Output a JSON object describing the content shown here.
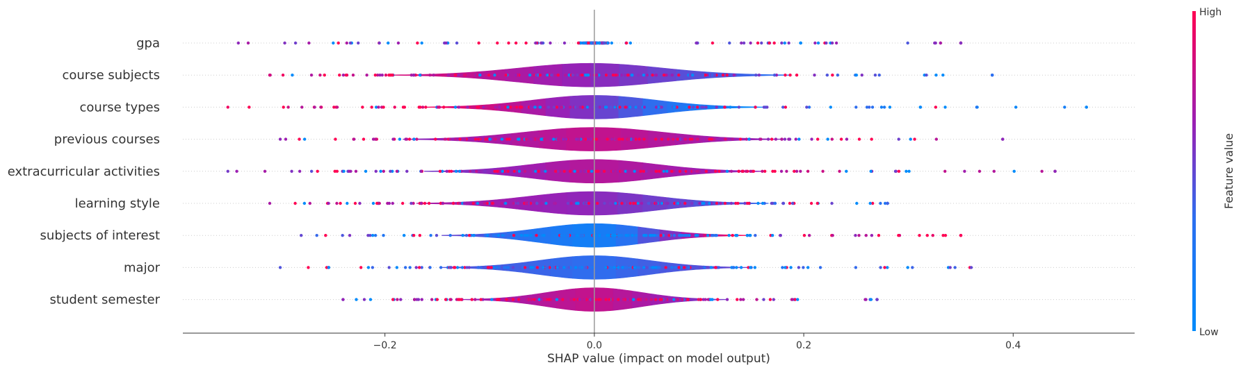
{
  "chart_data": {
    "type": "violin",
    "xlabel": "SHAP value (impact on model output)",
    "xlim": [
      -0.393,
      0.516
    ],
    "xticks": [
      -0.2,
      0.0,
      0.2,
      0.4
    ],
    "xtick_labels": [
      "−0.2",
      "0.0",
      "0.2",
      "0.4"
    ],
    "grid": false,
    "zero_line": 0,
    "colorbar": {
      "label": "Feature value",
      "high_label": "High",
      "low_label": "Low",
      "high_color": "#ff0052",
      "low_color": "#008bfb"
    },
    "colors": {
      "high": "#ff0052",
      "low": "#008bfb",
      "zero_line": "#999999"
    },
    "features": [
      {
        "name": "gpa",
        "range": [
          -0.34,
          0.35
        ],
        "spread": 0.004,
        "density": 0.3,
        "skew": 0.0,
        "mix": [
          0.62,
          0.5,
          0.58
        ]
      },
      {
        "name": "course subjects",
        "range": [
          -0.31,
          0.38
        ],
        "spread": 0.068,
        "density": 1.0,
        "skew": -0.05,
        "mix": [
          0.85,
          0.62,
          0.35
        ]
      },
      {
        "name": "course types",
        "range": [
          -0.35,
          0.47
        ],
        "spread": 0.058,
        "density": 1.0,
        "skew": 0.0,
        "mix": [
          0.95,
          0.55,
          0.05
        ]
      },
      {
        "name": "previous courses",
        "range": [
          -0.3,
          0.39
        ],
        "spread": 0.065,
        "density": 1.0,
        "skew": -0.01,
        "mix": [
          0.62,
          0.8,
          0.62
        ]
      },
      {
        "name": "extracurricular activities",
        "range": [
          -0.35,
          0.44
        ],
        "spread": 0.058,
        "density": 1.0,
        "skew": 0.0,
        "mix": [
          0.55,
          0.75,
          0.62
        ]
      },
      {
        "name": "learning style",
        "range": [
          -0.31,
          0.28
        ],
        "spread": 0.06,
        "density": 1.0,
        "skew": -0.03,
        "mix": [
          0.7,
          0.62,
          0.4
        ]
      },
      {
        "name": "subjects of interest",
        "range": [
          -0.28,
          0.35
        ],
        "spread": 0.052,
        "density": 1.0,
        "skew": 0.0,
        "mix": [
          0.5,
          0.12,
          0.98
        ]
      },
      {
        "name": "major",
        "range": [
          -0.3,
          0.36
        ],
        "spread": 0.052,
        "density": 1.0,
        "skew": 0.0,
        "mix": [
          0.45,
          0.35,
          0.5
        ]
      },
      {
        "name": "student semester",
        "range": [
          -0.24,
          0.27
        ],
        "spread": 0.045,
        "density": 1.0,
        "skew": 0.0,
        "mix": [
          0.65,
          0.8,
          0.55
        ]
      }
    ]
  }
}
